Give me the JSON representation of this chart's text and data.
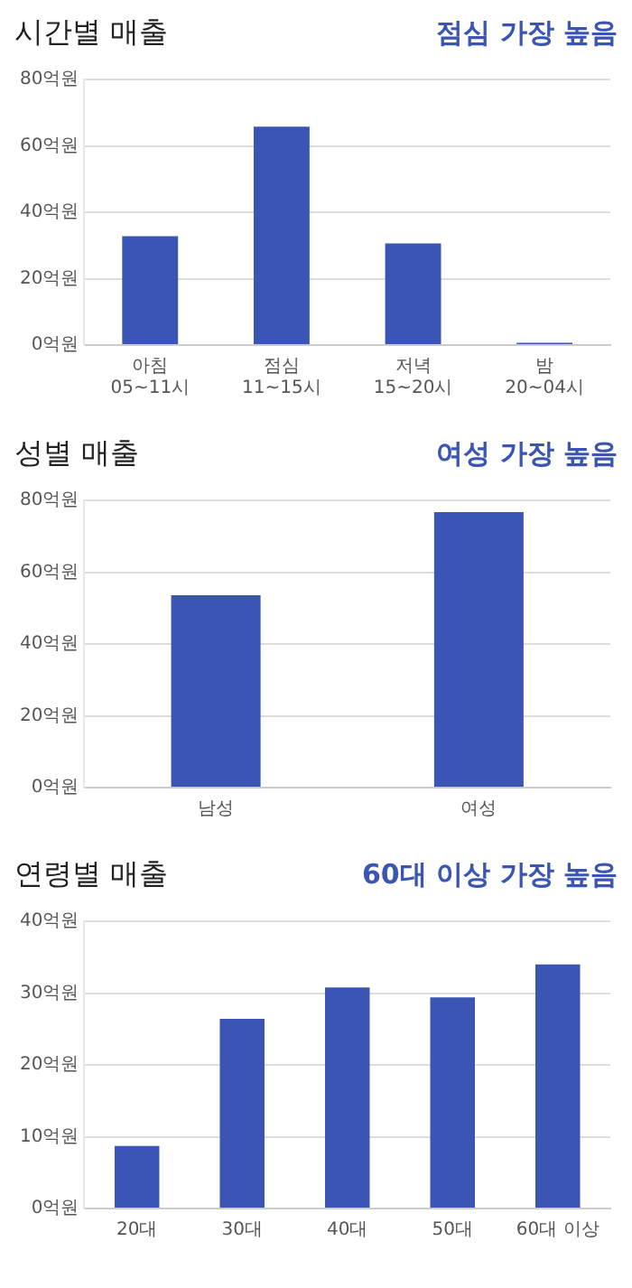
{
  "chart_data": [
    {
      "type": "bar",
      "title": "시간별 매출",
      "subtitle": "점심 가장 높음",
      "categories": [
        "아침\n05~11시",
        "점심\n11~15시",
        "저녁\n15~20시",
        "밤\n20~04시"
      ],
      "values": [
        32.8,
        65.8,
        30.6,
        0.7
      ],
      "color": "#3a55b4",
      "ylim": [
        0,
        80
      ],
      "yticks": [
        {
          "value": 0,
          "label": "0억원"
        },
        {
          "value": 20,
          "label": "20억원"
        },
        {
          "value": 40,
          "label": "40억원"
        },
        {
          "value": 60,
          "label": "60억원"
        },
        {
          "value": 80,
          "label": "80억원"
        }
      ],
      "grid": "y"
    },
    {
      "type": "bar",
      "title": "성별 매출",
      "subtitle": "여성 가장 높음",
      "categories": [
        "남성",
        "여성"
      ],
      "values": [
        53.6,
        76.7
      ],
      "color": "#3a55b4",
      "ylim": [
        0,
        80
      ],
      "yticks": [
        {
          "value": 0,
          "label": "0억원"
        },
        {
          "value": 20,
          "label": "20억원"
        },
        {
          "value": 40,
          "label": "40억원"
        },
        {
          "value": 60,
          "label": "60억원"
        },
        {
          "value": 80,
          "label": "80억원"
        }
      ],
      "grid": "y"
    },
    {
      "type": "bar",
      "title": "연령별 매출",
      "subtitle": "60대 이상 가장 높음",
      "categories": [
        "20대",
        "30대",
        "40대",
        "50대",
        "60대 이상"
      ],
      "values": [
        8.7,
        26.4,
        30.8,
        29.4,
        34.0
      ],
      "color": "#3a55b4",
      "ylim": [
        0,
        40
      ],
      "yticks": [
        {
          "value": 0,
          "label": "0억원"
        },
        {
          "value": 10,
          "label": "10억원"
        },
        {
          "value": 20,
          "label": "20억원"
        },
        {
          "value": 30,
          "label": "30억원"
        },
        {
          "value": 40,
          "label": "40억원"
        }
      ],
      "grid": "y"
    }
  ]
}
